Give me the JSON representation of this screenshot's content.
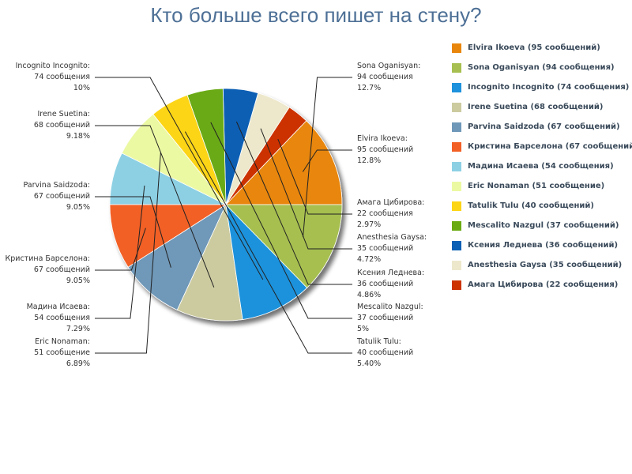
{
  "chart_data": {
    "type": "pie",
    "title": "Кто больше всего пишет на стену?",
    "legend_position": "right",
    "slices": [
      {
        "name": "Elvira Ikoeva",
        "value": 95,
        "percent": "12.8%",
        "color": "#e8860c",
        "label_name": "Elvira Ikoeva:",
        "label_count": "95 сообщений",
        "legend": "Elvira Ikoeva (95 сообщений)"
      },
      {
        "name": "Амага Цибирова",
        "value": 22,
        "percent": "2.97%",
        "color": "#cc3300",
        "label_name": "Амага Цибирова:",
        "label_count": "22 сообщения",
        "legend": "Амага Цибирова (22 сообщения)"
      },
      {
        "name": "Anesthesia Gaysa",
        "value": 35,
        "percent": "4.72%",
        "color": "#ede8cc",
        "label_name": "Anesthesia Gaysa:",
        "label_count": "35 сообщений",
        "legend": "Anesthesia Gaysa (35 сообщений)"
      },
      {
        "name": "Ксения Леднева",
        "value": 36,
        "percent": "4.86%",
        "color": "#0b5fb4",
        "label_name": "Ксения Леднева:",
        "label_count": "36 сообщений",
        "legend": "Ксения Леднева (36 сообщений)"
      },
      {
        "name": "Mescalito Nazgul",
        "value": 37,
        "percent": "5%",
        "color": "#6aaa12",
        "label_name": "Mescalito Nazgul:",
        "label_count": "37 сообщений",
        "legend": "Mescalito Nazgul (37 сообщений)"
      },
      {
        "name": "Tatulik Tulu",
        "value": 40,
        "percent": "5.40%",
        "color": "#fcd516",
        "label_name": "Tatulik Tulu:",
        "label_count": "40 сообщений",
        "legend": "Tatulik Tulu (40 сообщений)"
      },
      {
        "name": "Eric Nonaman",
        "value": 51,
        "percent": "6.89%",
        "color": "#ecf9a3",
        "label_name": "Eric Nonaman:",
        "label_count": "51 сообщение",
        "legend": "Eric Nonaman (51 сообщение)"
      },
      {
        "name": "Мадина Исаева",
        "value": 54,
        "percent": "7.29%",
        "color": "#8dd0e4",
        "label_name": "Мадина Исаева:",
        "label_count": "54 сообщения",
        "legend": "Мадина Исаева (54 сообщения)"
      },
      {
        "name": "Кристина Барселона",
        "value": 67,
        "percent": "9.05%",
        "color": "#f26026",
        "label_name": "Кристина Барселона:",
        "label_count": "67 сообщений",
        "legend": "Кристина Барселона (67 сообщений)"
      },
      {
        "name": "Parvina Saidzoda",
        "value": 67,
        "percent": "9.05%",
        "color": "#6f98b8",
        "label_name": "Parvina Saidzoda:",
        "label_count": "67 сообщений",
        "legend": "Parvina Saidzoda (67 сообщений)"
      },
      {
        "name": "Irene Suetina",
        "value": 68,
        "percent": "9.18%",
        "color": "#cccba0",
        "label_name": "Irene Suetina:",
        "label_count": "68 сообщений",
        "legend": "Irene Suetina (68 сообщений)"
      },
      {
        "name": "Incognito Incognito",
        "value": 74,
        "percent": "10%",
        "color": "#1e92dc",
        "label_name": "Incognito Incognito:",
        "label_count": "74 сообщения",
        "legend": "Incognito Incognito (74 сообщения)"
      },
      {
        "name": "Sona Oganisyan",
        "value": 94,
        "percent": "12.7%",
        "color": "#a6bf50",
        "label_name": "Sona Oganisyan:",
        "label_count": "94 сообщения",
        "legend": "Sona Oganisyan (94 сообщения)"
      }
    ],
    "legend_order": [
      "Elvira Ikoeva",
      "Sona Oganisyan",
      "Incognito Incognito",
      "Irene Suetina",
      "Parvina Saidzoda",
      "Кристина Барселона",
      "Мадина Исаева",
      "Eric Nonaman",
      "Tatulik Tulu",
      "Mescalito Nazgul",
      "Ксения Леднева",
      "Anesthesia Gaysa",
      "Амага Цибирова"
    ]
  }
}
